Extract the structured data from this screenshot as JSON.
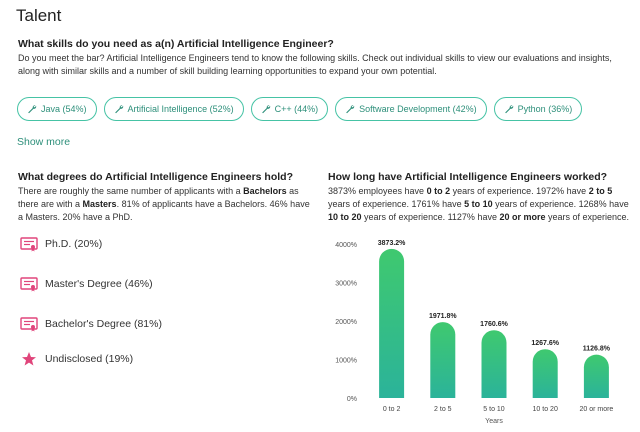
{
  "section_title": "Talent",
  "skills": {
    "question": "What skills do you need as a(n) Artificial Intelligence Engineer?",
    "description": "Do you meet the bar? Artificial Intelligence Engineers tend to know the following skills. Check out individual skills to view our evaluations and insights, along with similar skills and a number of skill building learning opportunities to expand your own potential.",
    "items": [
      {
        "label": "Java (54%)",
        "icon": "wrench-icon"
      },
      {
        "label": "Artificial Intelligence (52%)",
        "icon": "wrench-icon"
      },
      {
        "label": "C++ (44%)",
        "icon": "wrench-icon"
      },
      {
        "label": "Software Development (42%)",
        "icon": "wrench-icon"
      },
      {
        "label": "Python (36%)",
        "icon": "wrench-icon"
      }
    ],
    "show_more": "Show more",
    "accent": "#46c3a5"
  },
  "degrees": {
    "question": "What degrees do Artificial Intelligence Engineers hold?",
    "desc": {
      "p1": "There are roughly the same number of applicants with a ",
      "b1": "Bachelors",
      "p2": " as there are with a ",
      "b2": "Masters",
      "p3": ". 81% of applicants have a Bachelors. 46% have a Masters. 20% have a PhD."
    },
    "items": [
      {
        "label": "Ph.D. (20%)",
        "icon": "certificate-icon"
      },
      {
        "label": "Master's Degree (46%)",
        "icon": "certificate-icon"
      },
      {
        "label": "Bachelor's Degree (81%)",
        "icon": "certificate-icon"
      },
      {
        "label": "Undisclosed (19%)",
        "icon": "star-icon"
      }
    ],
    "icon_color": "#e0457b"
  },
  "experience": {
    "question": "How long have Artificial Intelligence Engineers worked?",
    "desc": {
      "t1": "3873% employees have ",
      "b1": "0 to 2",
      "t2": " years of experience. 1972% have ",
      "b2": "2 to 5",
      "t3": " years of experience. 1761% have ",
      "b3": "5 to 10",
      "t4": " years of experience. 1268% have ",
      "b4": "10 to 20",
      "t5": " years of experience. 1127% have ",
      "b5": "20 or more",
      "t6": " years of experience."
    }
  },
  "chart_data": {
    "type": "bar",
    "categories": [
      "0 to 2",
      "2 to 5",
      "5 to 10",
      "10 to 20",
      "20 or more"
    ],
    "values": [
      3873.2,
      1971.8,
      1760.6,
      1267.6,
      1126.8
    ],
    "data_labels": [
      "3873.2%",
      "1971.8%",
      "1760.6%",
      "1267.6%",
      "1126.8%"
    ],
    "xlabel": "Years",
    "ylabel": "",
    "ylim": [
      0,
      4000
    ],
    "yticks": [
      0,
      1000,
      2000,
      3000,
      4000
    ],
    "ytick_labels": [
      "0%",
      "1000%",
      "2000%",
      "3000%",
      "4000%"
    ],
    "grid": false,
    "bar_color_top": "#3fc96f",
    "bar_color_bottom": "#2bb39a"
  }
}
